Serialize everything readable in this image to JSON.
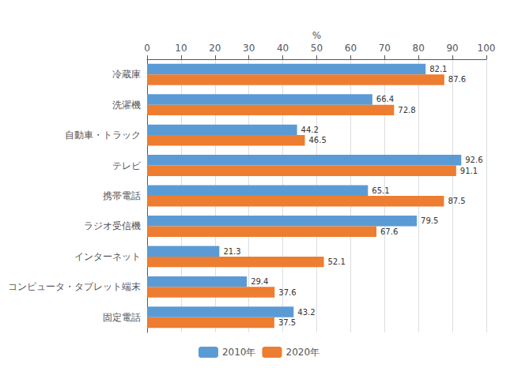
{
  "chart_data": {
    "type": "bar",
    "orientation": "horizontal",
    "categories": [
      "冷蔵庫",
      "洗濯機",
      "自動車・トラック",
      "テレビ",
      "携帯電話",
      "ラジオ受信機",
      "インターネット",
      "コンピュータ・タブレット端末",
      "固定電話"
    ],
    "series": [
      {
        "name": "2010年",
        "color": "#5B9BD5",
        "values": [
          82.1,
          66.4,
          44.2,
          92.6,
          65.1,
          79.5,
          21.3,
          29.4,
          43.2
        ]
      },
      {
        "name": "2020年",
        "color": "#ED7D31",
        "values": [
          87.6,
          72.8,
          46.5,
          91.1,
          87.5,
          67.6,
          52.1,
          37.6,
          37.5
        ]
      }
    ],
    "xlabel": "%",
    "xlim": [
      0,
      100
    ],
    "xticks": [
      0,
      10,
      20,
      30,
      40,
      50,
      60,
      70,
      80,
      90,
      100
    ],
    "grid": true,
    "legend": "bottom",
    "data_labels": true
  }
}
